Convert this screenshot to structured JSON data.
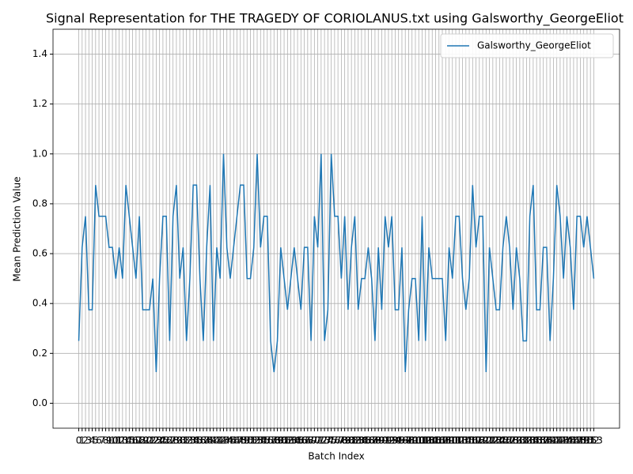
{
  "chart_data": {
    "type": "line",
    "title": "Signal Representation for THE TRAGEDY OF CORIOLANUS.txt using Galsworthy_GeorgeEliot",
    "x_label": "Batch Index",
    "y_label": "Mean Prediction Value",
    "x": [
      0,
      1,
      2,
      3,
      4,
      5,
      6,
      7,
      8,
      9,
      10,
      11,
      12,
      13,
      14,
      15,
      16,
      17,
      18,
      19,
      20,
      21,
      22,
      23,
      24,
      25,
      26,
      27,
      28,
      29,
      30,
      31,
      32,
      33,
      34,
      35,
      36,
      37,
      38,
      39,
      40,
      41,
      42,
      43,
      44,
      45,
      46,
      47,
      48,
      49,
      50,
      51,
      52,
      53,
      54,
      55,
      56,
      57,
      58,
      59,
      60,
      61,
      62,
      63,
      64,
      65,
      66,
      67,
      68,
      69,
      70,
      71,
      72,
      73,
      74,
      75,
      76,
      77,
      78,
      79,
      80,
      81,
      82,
      83,
      84,
      85,
      86,
      87,
      88,
      89,
      90,
      91,
      92,
      93,
      94,
      95,
      96,
      97,
      98,
      99,
      100,
      101,
      102,
      103,
      104,
      105,
      106,
      107,
      108,
      109,
      110,
      111,
      112,
      113,
      114,
      115,
      116,
      117,
      118,
      119,
      120,
      121,
      122,
      123,
      124,
      125,
      126,
      127,
      128,
      129,
      130,
      131,
      132,
      133,
      134,
      135,
      136,
      137,
      138,
      139,
      140,
      141,
      142,
      143,
      144,
      145,
      146,
      147,
      148,
      149,
      150,
      151,
      152,
      153
    ],
    "series": [
      {
        "name": "Galsworthy_GeorgeEliot",
        "color": "#1f77b4",
        "values": [
          0.25,
          0.625,
          0.75,
          0.375,
          0.375,
          0.875,
          0.75,
          0.75,
          0.75,
          0.625,
          0.625,
          0.5,
          0.625,
          0.5,
          0.875,
          0.75,
          0.625,
          0.5,
          0.75,
          0.375,
          0.375,
          0.375,
          0.5,
          0.125,
          0.5,
          0.75,
          0.75,
          0.25,
          0.75,
          0.875,
          0.5,
          0.625,
          0.25,
          0.5,
          0.875,
          0.875,
          0.5,
          0.25,
          0.625,
          0.875,
          0.25,
          0.625,
          0.5,
          1.0,
          0.625,
          0.5,
          0.625,
          0.75,
          0.875,
          0.875,
          0.5,
          0.5,
          0.625,
          1.0,
          0.625,
          0.75,
          0.75,
          0.25,
          0.125,
          0.25,
          0.625,
          0.5,
          0.375,
          0.5,
          0.625,
          0.5,
          0.375,
          0.625,
          0.625,
          0.25,
          0.75,
          0.625,
          1.0,
          0.25,
          0.375,
          1.0,
          0.75,
          0.75,
          0.5,
          0.75,
          0.375,
          0.625,
          0.75,
          0.375,
          0.5,
          0.5,
          0.625,
          0.5,
          0.25,
          0.625,
          0.375,
          0.75,
          0.625,
          0.75,
          0.375,
          0.375,
          0.625,
          0.125,
          0.375,
          0.5,
          0.5,
          0.25,
          0.75,
          0.25,
          0.625,
          0.5,
          0.5,
          0.5,
          0.5,
          0.25,
          0.625,
          0.5,
          0.75,
          0.75,
          0.5,
          0.375,
          0.5,
          0.875,
          0.625,
          0.75,
          0.75,
          0.125,
          0.625,
          0.5,
          0.375,
          0.375,
          0.625,
          0.75,
          0.625,
          0.375,
          0.625,
          0.5,
          0.25,
          0.25,
          0.75,
          0.875,
          0.375,
          0.375,
          0.625,
          0.625,
          0.25,
          0.5,
          0.875,
          0.75,
          0.5,
          0.75,
          0.625,
          0.375,
          0.75,
          0.75,
          0.625,
          0.75,
          0.625,
          0.5
        ]
      }
    ],
    "xlim": [
      -7.65,
      160.65
    ],
    "xticks": [
      0,
      1,
      2,
      3,
      4,
      5,
      6,
      7,
      8,
      9,
      10,
      11,
      12,
      13,
      14,
      15,
      16,
      17,
      18,
      19,
      20,
      21,
      22,
      23,
      24,
      25,
      26,
      27,
      28,
      29,
      30,
      31,
      32,
      33,
      34,
      35,
      36,
      37,
      38,
      39,
      40,
      41,
      42,
      43,
      44,
      45,
      46,
      47,
      48,
      49,
      50,
      51,
      52,
      53,
      54,
      55,
      56,
      57,
      58,
      59,
      60,
      61,
      62,
      63,
      64,
      65,
      66,
      67,
      68,
      69,
      70,
      71,
      72,
      73,
      74,
      75,
      76,
      77,
      78,
      79,
      80,
      81,
      82,
      83,
      84,
      85,
      86,
      87,
      88,
      89,
      90,
      91,
      92,
      93,
      94,
      95,
      96,
      97,
      98,
      99,
      100,
      101,
      102,
      103,
      104,
      105,
      106,
      107,
      108,
      109,
      110,
      111,
      112,
      113,
      114,
      115,
      116,
      117,
      118,
      119,
      120,
      121,
      122,
      123,
      124,
      125,
      126,
      127,
      128,
      129,
      130,
      131,
      132,
      133,
      134,
      135,
      136,
      137,
      138,
      139,
      140,
      141,
      142,
      143,
      144,
      145,
      146,
      147,
      148,
      149,
      150,
      151,
      152,
      153
    ],
    "ylim": [
      -0.1,
      1.5
    ],
    "yticks": [
      {
        "value": 0,
        "label": "0.0"
      },
      0.2,
      0.4,
      0.6,
      0.8,
      {
        "value": 1,
        "label": "1.0"
      },
      1.2,
      1.4
    ],
    "grid": true,
    "legend": "upper right"
  }
}
